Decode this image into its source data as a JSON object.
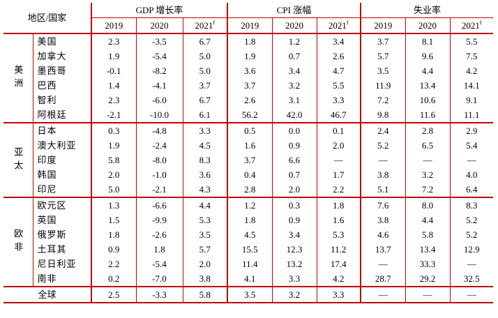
{
  "table": {
    "header": {
      "region_country": "地区/国家",
      "groups": [
        "GDP 增长率",
        "CPI 涨幅",
        "失业率"
      ],
      "years": [
        "2019",
        "2020",
        "2021"
      ],
      "forecast_mark": "f"
    },
    "groups": [
      {
        "name": "美洲",
        "rows": [
          {
            "country": "美国",
            "values": [
              "2.3",
              "-3.5",
              "6.7",
              "1.8",
              "1.2",
              "3.4",
              "3.7",
              "8.1",
              "5.5"
            ]
          },
          {
            "country": "加拿大",
            "values": [
              "1.9",
              "-5.4",
              "5.0",
              "1.9",
              "0.7",
              "2.6",
              "5.7",
              "9.6",
              "7.5"
            ]
          },
          {
            "country": "墨西哥",
            "values": [
              "-0.1",
              "-8.2",
              "5.0",
              "3.6",
              "3.4",
              "4.7",
              "3.5",
              "4.4",
              "4.2"
            ]
          },
          {
            "country": "巴西",
            "values": [
              "1.4",
              "-4.1",
              "3.7",
              "3.7",
              "3.2",
              "5.5",
              "11.9",
              "13.4",
              "14.1"
            ]
          },
          {
            "country": "智利",
            "values": [
              "2.3",
              "-6.0",
              "6.7",
              "2.6",
              "3.1",
              "3.3",
              "7.2",
              "10.6",
              "9.1"
            ]
          },
          {
            "country": "阿根廷",
            "values": [
              "-2.1",
              "-10.0",
              "6.1",
              "56.2",
              "42.0",
              "46.7",
              "9.8",
              "11.6",
              "11.1"
            ]
          }
        ]
      },
      {
        "name": "亚太",
        "rows": [
          {
            "country": "日本",
            "values": [
              "0.3",
              "-4.8",
              "3.3",
              "0.5",
              "0.0",
              "0.1",
              "2.4",
              "2.8",
              "2.9"
            ]
          },
          {
            "country": "澳大利亚",
            "values": [
              "1.9",
              "-2.4",
              "4.5",
              "1.6",
              "0.9",
              "2.0",
              "5.2",
              "6.5",
              "5.4"
            ]
          },
          {
            "country": "印度",
            "values": [
              "5.8",
              "-8.0",
              "8.3",
              "3.7",
              "6.6",
              "—",
              "—",
              "—",
              "—"
            ]
          },
          {
            "country": "韩国",
            "values": [
              "2.0",
              "-1.0",
              "3.6",
              "0.4",
              "0.7",
              "1.7",
              "3.8",
              "3.2",
              "4.0"
            ]
          },
          {
            "country": "印尼",
            "values": [
              "5.0",
              "-2.1",
              "4.3",
              "2.8",
              "2.0",
              "2.2",
              "5.1",
              "7.2",
              "6.4"
            ]
          }
        ]
      },
      {
        "name": "欧非",
        "rows": [
          {
            "country": "欧元区",
            "values": [
              "1.3",
              "-6.6",
              "4.4",
              "1.2",
              "0.3",
              "1.8",
              "7.6",
              "8.0",
              "8.3"
            ]
          },
          {
            "country": "英国",
            "values": [
              "1.5",
              "-9.9",
              "5.3",
              "1.8",
              "0.9",
              "1.6",
              "3.8",
              "4.4",
              "5.2"
            ]
          },
          {
            "country": "俄罗斯",
            "values": [
              "1.8",
              "-2.6",
              "3.5",
              "4.5",
              "3.4",
              "5.3",
              "4.6",
              "5.8",
              "5.2"
            ]
          },
          {
            "country": "土耳其",
            "values": [
              "0.9",
              "1.8",
              "5.7",
              "15.5",
              "12.3",
              "11.2",
              "13.7",
              "13.4",
              "12.9"
            ]
          },
          {
            "country": "尼日利亚",
            "values": [
              "2.2",
              "-5.4",
              "2.0",
              "11.4",
              "13.2",
              "17.4",
              "—",
              "33.3",
              "—"
            ]
          },
          {
            "country": "南非",
            "values": [
              "0.2",
              "-7.0",
              "3.8",
              "4.1",
              "3.3",
              "4.2",
              "28.7",
              "29.2",
              "32.5"
            ]
          }
        ]
      }
    ],
    "global": {
      "label": "全球",
      "values": [
        "2.5",
        "-3.3",
        "5.8",
        "3.5",
        "3.2",
        "3.3",
        "—",
        "—",
        "—"
      ]
    }
  }
}
